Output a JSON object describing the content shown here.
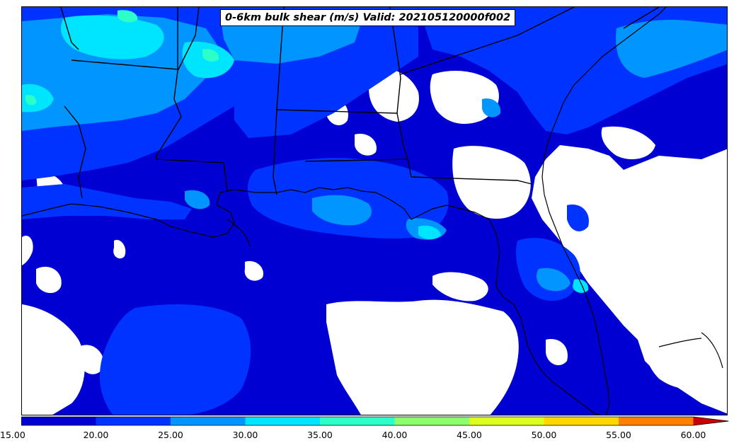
{
  "title": "0-6km bulk shear (m/s) Valid: 202105120000f002",
  "colorbar": {
    "tick_labels": [
      "15.00",
      "20.00",
      "25.00",
      "30.00",
      "35.00",
      "40.00",
      "45.00",
      "50.00",
      "55.00",
      "60.00"
    ],
    "levels": [
      15,
      20,
      25,
      30,
      35,
      40,
      45,
      50,
      55,
      60
    ],
    "colors": [
      "#0000d2",
      "#0033ff",
      "#0095ff",
      "#00e5ff",
      "#2cffc8",
      "#8cff6e",
      "#dcff1e",
      "#ffd700",
      "#ff7f00",
      "#ff3300",
      "#c80000"
    ],
    "extend": "max"
  },
  "palette": {
    "background_no_data": "#ffffff",
    "coastline": "#000000",
    "state_borders": "#000000"
  },
  "map": {
    "region": "Gulf of Mexico / U.S. Southeast",
    "field": "0-6km bulk shear",
    "units": "m/s"
  }
}
